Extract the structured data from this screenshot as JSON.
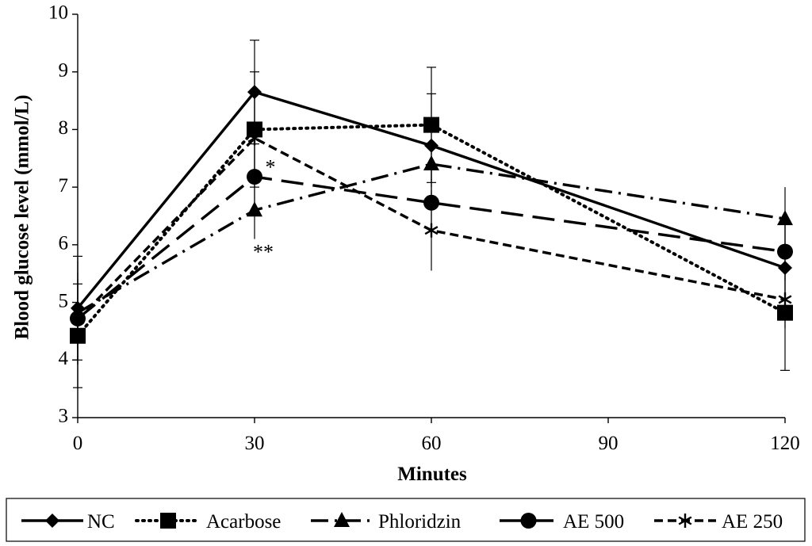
{
  "chart_data": {
    "type": "line",
    "title": "",
    "xlabel": "Minutes",
    "ylabel": "Blood glucose level (mmol/L)",
    "x": [
      0,
      30,
      60,
      120
    ],
    "x_ticks": [
      "0",
      "30",
      "60",
      "90",
      "120"
    ],
    "x_tick_values": [
      0,
      30,
      60,
      90,
      120
    ],
    "y_ticks": [
      "3",
      "4",
      "5",
      "6",
      "7",
      "8",
      "9",
      "10"
    ],
    "y_tick_values": [
      3,
      4,
      5,
      6,
      7,
      8,
      9,
      10
    ],
    "xlim": [
      0,
      120
    ],
    "ylim": [
      3,
      10
    ],
    "grid": false,
    "legend_position": "bottom",
    "series": [
      {
        "name": "NC",
        "values": [
          4.9,
          8.65,
          7.72,
          5.6
        ],
        "errors": [
          0.9,
          0.9,
          0.9,
          0.8
        ],
        "dash": "solid",
        "marker": "diamond",
        "error_caps": true
      },
      {
        "name": "Acarbose",
        "values": [
          4.42,
          8.0,
          8.08,
          4.82
        ],
        "errors": [
          0.9,
          1.0,
          1.0,
          1.0
        ],
        "dash": "dotted",
        "marker": "square",
        "error_caps": true
      },
      {
        "name": "Phloridzin",
        "values": [
          4.82,
          6.6,
          7.4,
          6.45
        ],
        "errors": [
          0.9,
          0.5,
          0.4,
          0.55
        ],
        "dash": "dashdot",
        "marker": "triangle",
        "error_caps": false
      },
      {
        "name": "AE 500",
        "values": [
          4.72,
          7.18,
          6.73,
          5.88
        ],
        "errors": [
          0.8,
          0.6,
          0.6,
          0.5
        ],
        "dash": "longdash",
        "marker": "circle",
        "error_caps": false
      },
      {
        "name": "AE 250",
        "values": [
          4.7,
          7.85,
          6.25,
          5.05
        ],
        "errors": [
          0.7,
          0.8,
          0.7,
          0.5
        ],
        "dash": "shortdash",
        "marker": "star",
        "error_caps": false
      }
    ],
    "annotations": [
      {
        "text": "*",
        "x": 30,
        "y": 7.42
      },
      {
        "text": "**",
        "x": 30,
        "y": 5.95
      }
    ]
  }
}
